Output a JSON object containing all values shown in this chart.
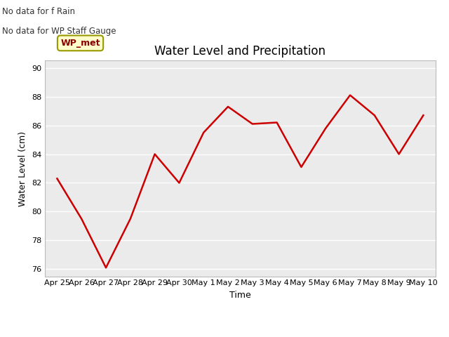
{
  "title": "Water Level and Precipitation",
  "xlabel": "Time",
  "ylabel": "Water Level (cm)",
  "ylim": [
    75.5,
    90.5
  ],
  "yticks": [
    76,
    78,
    80,
    82,
    84,
    86,
    88,
    90
  ],
  "line_color": "#cc0000",
  "line_width": 1.8,
  "note_line1": "No data for f Rain",
  "note_line2": "No data for WP Staff Gauge",
  "wp_met_label": "WP_met",
  "plot_bg_color": "#ebebeb",
  "fig_bg_color": "#ffffff",
  "x_dates": [
    "Apr 25",
    "Apr 26",
    "Apr 27",
    "Apr 28",
    "Apr 29",
    "Apr 30",
    "May 1",
    "May 2",
    "May 3",
    "May 4",
    "May 5",
    "May 6",
    "May 7",
    "May 8",
    "May 9",
    "May 10"
  ],
  "x_values": [
    0,
    1,
    2,
    3,
    4,
    5,
    6,
    7,
    8,
    9,
    10,
    11,
    12,
    13,
    14,
    15
  ],
  "y_values": [
    82.3,
    79.5,
    76.1,
    79.5,
    84.0,
    82.0,
    85.5,
    87.3,
    86.1,
    86.2,
    83.1,
    85.8,
    88.1,
    86.7,
    84.0,
    86.7
  ]
}
